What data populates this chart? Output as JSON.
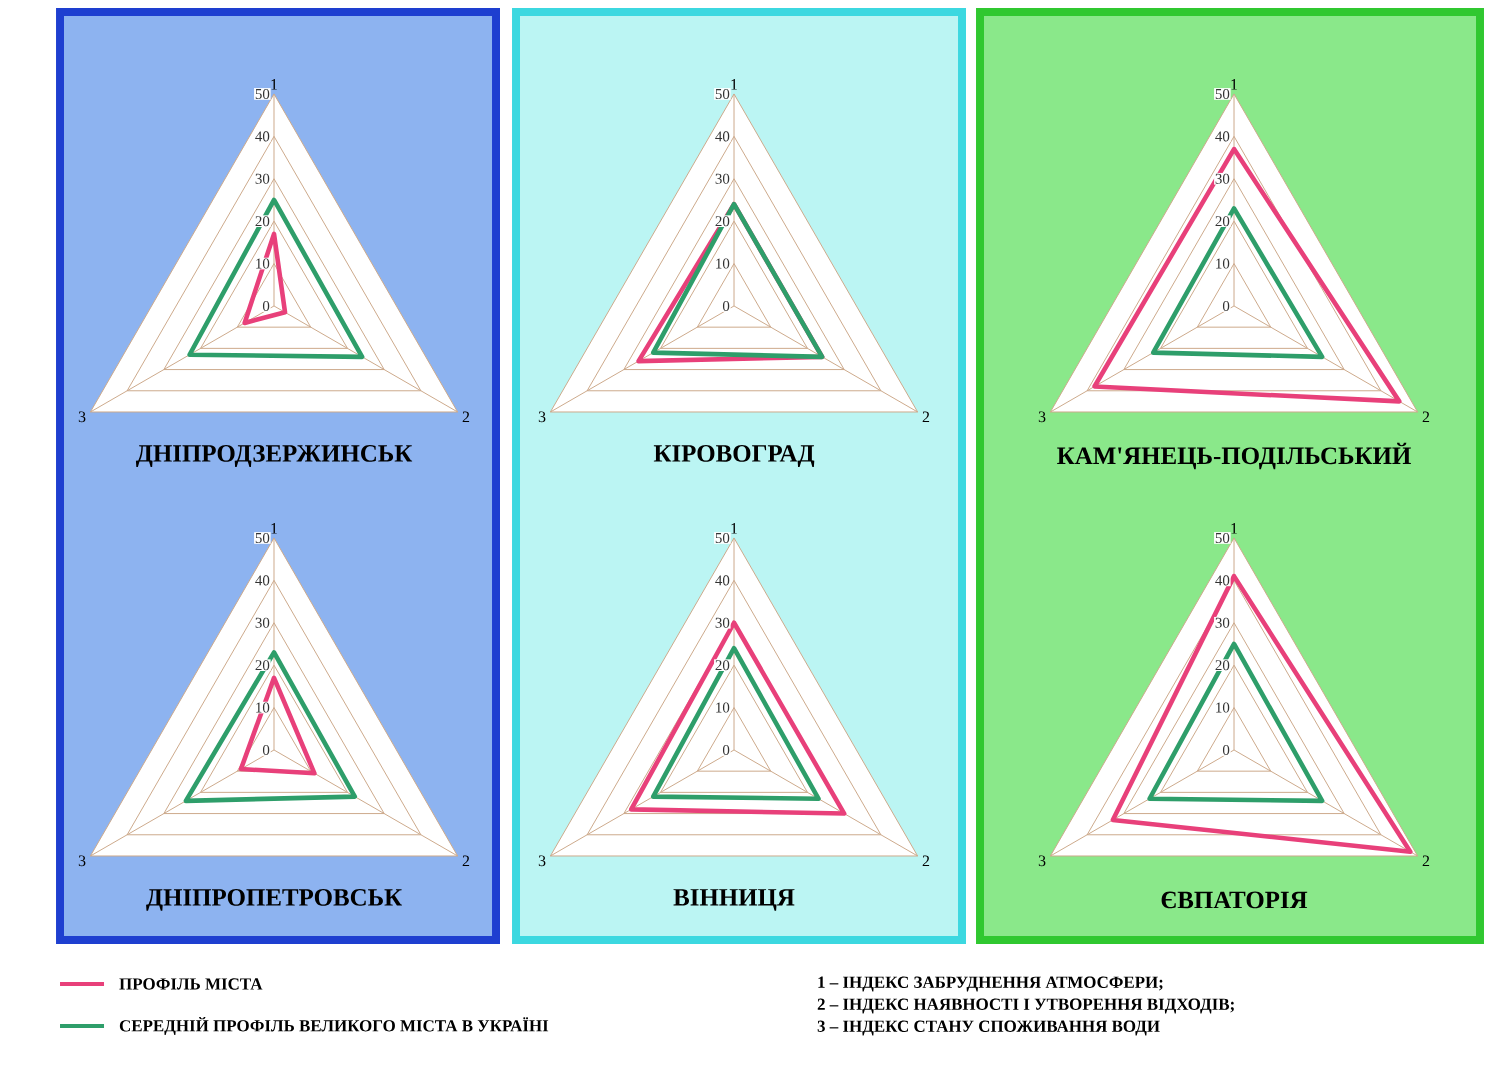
{
  "chart_data": [
    {
      "type": "radar",
      "title": "ДНІПРОДЗЕРЖИНСЬК",
      "categories": [
        "1",
        "2",
        "3"
      ],
      "ylim": [
        0,
        50
      ],
      "yticks": [
        0,
        10,
        20,
        30,
        40,
        50
      ],
      "grid": true,
      "legend": "bottom",
      "series": [
        {
          "name": "ПРОФІЛЬ МІСТА",
          "color": "#e8407a",
          "values": [
            17,
            3,
            8
          ]
        },
        {
          "name": "СЕРЕДНІЙ ПРОФІЛЬ  ВЕЛИКОГО МІСТА  В  УКРАЇНІ",
          "color": "#2e9e6a",
          "values": [
            25,
            24,
            23
          ]
        }
      ],
      "annotations": [
        "1 – ІНДЕКС ЗАБРУДНЕННЯ АТМОСФЕРИ;",
        "2 – ІНДЕКС НАЯВНОСТІ І УТВОРЕННЯ ВІДХОДІВ;",
        "3 – ІНДЕКС СТАНУ СПОЖИВАННЯ ВОДИ"
      ]
    },
    {
      "type": "radar",
      "title": "КІРОВОГРАД",
      "categories": [
        "1",
        "2",
        "3"
      ],
      "ylim": [
        0,
        50
      ],
      "yticks": [
        0,
        10,
        20,
        30,
        40,
        50
      ],
      "grid": true,
      "series": [
        {
          "color": "#e8407a",
          "values": [
            24,
            24,
            26
          ]
        },
        {
          "color": "#2e9e6a",
          "values": [
            24,
            24,
            22
          ]
        }
      ]
    },
    {
      "type": "radar",
      "title": "КАМ'ЯНЕЦЬ-ПОДІЛЬСЬКИЙ",
      "categories": [
        "1",
        "2",
        "3"
      ],
      "ylim": [
        0,
        50
      ],
      "yticks": [
        0,
        10,
        20,
        30,
        40,
        50
      ],
      "grid": true,
      "series": [
        {
          "color": "#e8407a",
          "values": [
            37,
            45,
            38
          ]
        },
        {
          "color": "#2e9e6a",
          "values": [
            23,
            24,
            22
          ]
        }
      ]
    },
    {
      "type": "radar",
      "title": "ДНІПРОПЕТРОВСЬК",
      "categories": [
        "1",
        "2",
        "3"
      ],
      "ylim": [
        0,
        50
      ],
      "yticks": [
        0,
        10,
        20,
        30,
        40,
        50
      ],
      "grid": true,
      "series": [
        {
          "color": "#e8407a",
          "values": [
            17,
            11,
            9
          ]
        },
        {
          "color": "#2e9e6a",
          "values": [
            23,
            22,
            24
          ]
        }
      ]
    },
    {
      "type": "radar",
      "title": "ВІННИЦЯ",
      "categories": [
        "1",
        "2",
        "3"
      ],
      "ylim": [
        0,
        50
      ],
      "yticks": [
        0,
        10,
        20,
        30,
        40,
        50
      ],
      "grid": true,
      "series": [
        {
          "color": "#e8407a",
          "values": [
            30,
            30,
            28
          ]
        },
        {
          "color": "#2e9e6a",
          "values": [
            24,
            23,
            22
          ]
        }
      ]
    },
    {
      "type": "radar",
      "title": "ЄВПАТОРІЯ",
      "categories": [
        "1",
        "2",
        "3"
      ],
      "ylim": [
        0,
        50
      ],
      "yticks": [
        0,
        10,
        20,
        30,
        40,
        50
      ],
      "grid": true,
      "series": [
        {
          "color": "#e8407a",
          "values": [
            41,
            48,
            33
          ]
        },
        {
          "color": "#2e9e6a",
          "values": [
            25,
            24,
            23
          ]
        }
      ]
    }
  ]
}
